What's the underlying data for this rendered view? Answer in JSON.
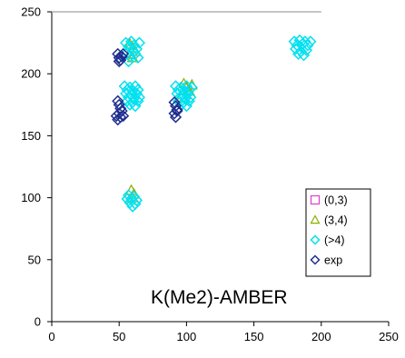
{
  "chart_data": {
    "type": "scatter",
    "title": "",
    "xlabel": "",
    "ylabel": "",
    "xlim": [
      0,
      250
    ],
    "ylim": [
      0,
      250
    ],
    "x_ticks": [
      0,
      50,
      100,
      150,
      200,
      250
    ],
    "y_ticks": [
      0,
      50,
      100,
      150,
      200,
      250
    ],
    "grid": false,
    "legend_position": "right",
    "annotation": "K(Me2)-AMBER",
    "series": [
      {
        "name": "(0,3)",
        "marker": "square",
        "color": "#e040c0",
        "points": []
      },
      {
        "name": "(3,4)",
        "marker": "triangle",
        "color": "#8ab000",
        "points": [
          [
            58,
            224
          ],
          [
            60,
            221
          ],
          [
            62,
            218
          ],
          [
            58,
            216
          ],
          [
            60,
            213
          ],
          [
            98,
            192
          ],
          [
            100,
            189
          ],
          [
            102,
            186
          ],
          [
            104,
            191
          ],
          [
            97,
            183
          ],
          [
            59,
            106
          ],
          [
            61,
            103
          ],
          [
            60,
            100
          ]
        ]
      },
      {
        "name": "(>4)",
        "marker": "diamond",
        "color": "#00e0f0",
        "points": [
          [
            55,
            225
          ],
          [
            57,
            222
          ],
          [
            59,
            226
          ],
          [
            61,
            223
          ],
          [
            63,
            220
          ],
          [
            65,
            225
          ],
          [
            56,
            217
          ],
          [
            58,
            214
          ],
          [
            60,
            219
          ],
          [
            62,
            216
          ],
          [
            64,
            213
          ],
          [
            57,
            210
          ],
          [
            54,
            190
          ],
          [
            56,
            187
          ],
          [
            58,
            189
          ],
          [
            60,
            186
          ],
          [
            62,
            190
          ],
          [
            64,
            187
          ],
          [
            55,
            184
          ],
          [
            57,
            181
          ],
          [
            59,
            183
          ],
          [
            61,
            180
          ],
          [
            63,
            184
          ],
          [
            65,
            181
          ],
          [
            56,
            178
          ],
          [
            58,
            175
          ],
          [
            60,
            177
          ],
          [
            62,
            174
          ],
          [
            64,
            178
          ],
          [
            92,
            190
          ],
          [
            94,
            187
          ],
          [
            96,
            189
          ],
          [
            98,
            186
          ],
          [
            100,
            190
          ],
          [
            102,
            187
          ],
          [
            104,
            189
          ],
          [
            93,
            184
          ],
          [
            95,
            181
          ],
          [
            97,
            183
          ],
          [
            99,
            180
          ],
          [
            101,
            184
          ],
          [
            103,
            181
          ],
          [
            94,
            178
          ],
          [
            96,
            175
          ],
          [
            98,
            177
          ],
          [
            100,
            174
          ],
          [
            102,
            178
          ],
          [
            180,
            226
          ],
          [
            182,
            223
          ],
          [
            184,
            227
          ],
          [
            186,
            224
          ],
          [
            188,
            226
          ],
          [
            190,
            223
          ],
          [
            192,
            226
          ],
          [
            181,
            220
          ],
          [
            185,
            218
          ],
          [
            187,
            215
          ],
          [
            189,
            219
          ],
          [
            183,
            216
          ],
          [
            57,
            102
          ],
          [
            59,
            99
          ],
          [
            61,
            101
          ],
          [
            63,
            98
          ],
          [
            58,
            96
          ],
          [
            60,
            93
          ],
          [
            62,
            95
          ],
          [
            56,
            99
          ]
        ]
      },
      {
        "name": "exp",
        "marker": "diamond",
        "color": "#1f2f8f",
        "points": [
          [
            49,
            216
          ],
          [
            50,
            213
          ],
          [
            51,
            211
          ],
          [
            52,
            214
          ],
          [
            50,
            210
          ],
          [
            53,
            216
          ],
          [
            49,
            178
          ],
          [
            50,
            175
          ],
          [
            51,
            172
          ],
          [
            50,
            168
          ],
          [
            51,
            165
          ],
          [
            49,
            163
          ],
          [
            52,
            170
          ],
          [
            53,
            166
          ],
          [
            48,
            166
          ],
          [
            91,
            177
          ],
          [
            92,
            174
          ],
          [
            93,
            171
          ],
          [
            91,
            168
          ],
          [
            92,
            165
          ],
          [
            93,
            170
          ]
        ]
      }
    ]
  }
}
